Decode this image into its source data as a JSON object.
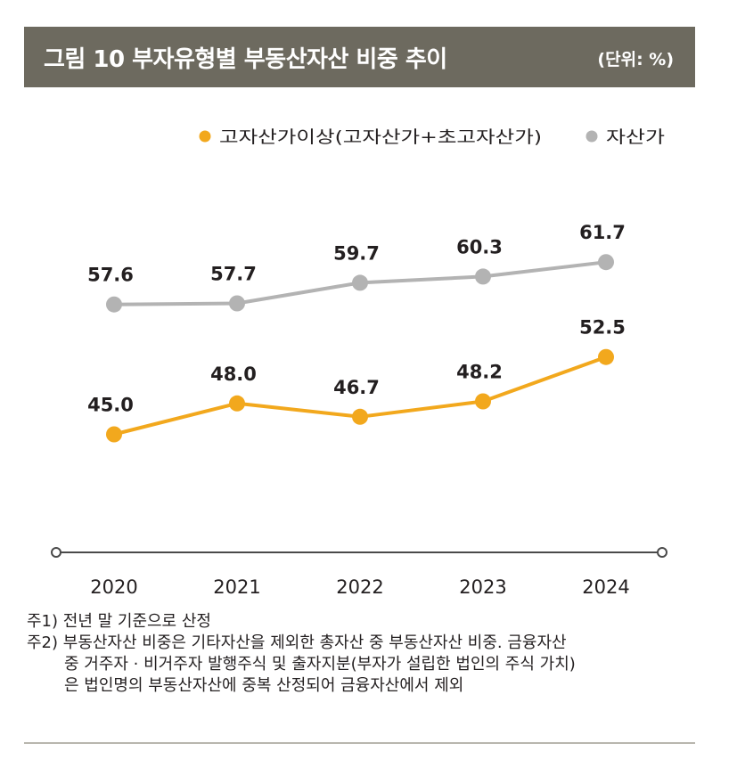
{
  "header": {
    "title": "그림 10  부자유형별 부동산자산 비중 추이",
    "unit": "(단위: %)"
  },
  "colors": {
    "header_bg": "#6d6a5f",
    "series_high": "#f2a81d",
    "series_rich": "#b3b3b3",
    "axis": "#4a4a4a"
  },
  "chart_data": {
    "type": "line",
    "title": "",
    "xlabel": "",
    "ylabel": "",
    "x": [
      "2020",
      "2021",
      "2022",
      "2023",
      "2024"
    ],
    "legend_position": "top-right",
    "grid": false,
    "series": [
      {
        "name": "고자산가이상(고자산가+초고자산가)",
        "values": [
          45.0,
          48.0,
          46.7,
          48.2,
          52.5
        ],
        "labels": [
          "45.0",
          "48.0",
          "46.7",
          "48.2",
          "52.5"
        ],
        "color": "#f2a81d"
      },
      {
        "name": "자산가",
        "values": [
          57.6,
          57.7,
          59.7,
          60.3,
          61.7
        ],
        "labels": [
          "57.6",
          "57.7",
          "59.7",
          "60.3",
          "61.7"
        ],
        "color": "#b3b3b3"
      }
    ]
  },
  "notes": [
    "주1) 전년 말 기준으로 산정",
    "주2) 부동산자산 비중은 기타자산을 제외한 총자산 중 부동산자산 비중. 금융자산",
    "중 거주자 · 비거주자 발행주식 및 출자지분(부자가 설립한 법인의 주식 가치)",
    "은 법인명의 부동산자산에 중복 산정되어 금융자산에서 제외"
  ]
}
